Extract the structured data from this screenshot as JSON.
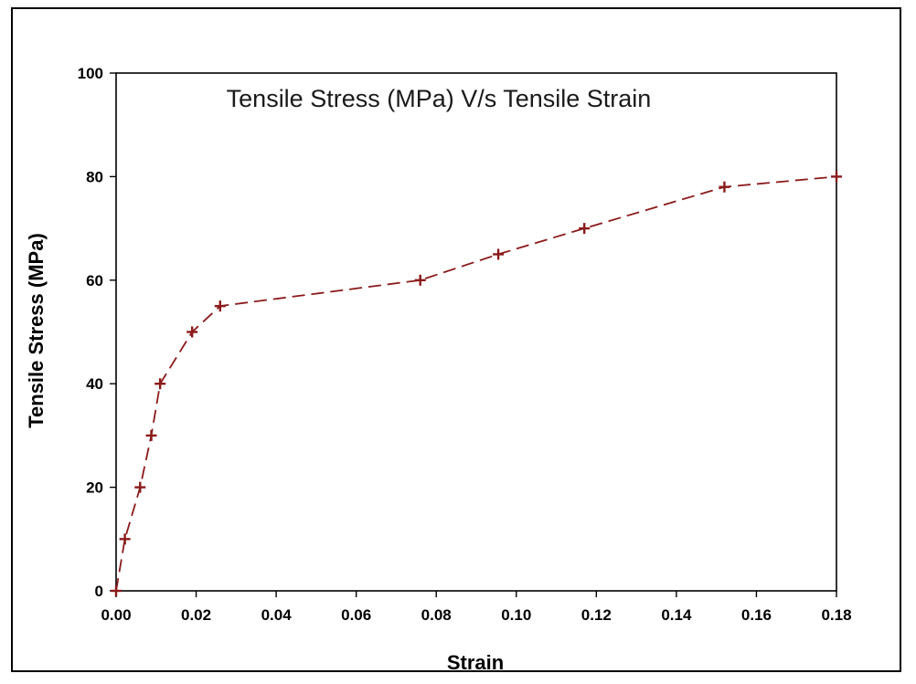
{
  "chart_data": {
    "type": "line",
    "title": "Tensile Stress (MPa) V/s Tensile Strain",
    "xlabel": "Strain",
    "ylabel": "Tensile Stress (MPa)",
    "xlim": [
      0,
      0.18
    ],
    "ylim": [
      0,
      100
    ],
    "xticks": [
      "0.00",
      "0.02",
      "0.04",
      "0.06",
      "0.08",
      "0.10",
      "0.12",
      "0.14",
      "0.16",
      "0.18"
    ],
    "yticks": [
      "0",
      "20",
      "40",
      "60",
      "80",
      "100"
    ],
    "grid": false,
    "series": [
      {
        "x": [
          0.0,
          0.0022,
          0.006,
          0.0088,
          0.011,
          0.019,
          0.026,
          0.076,
          0.0955,
          0.117,
          0.152,
          0.18
        ],
        "y": [
          0,
          10,
          20,
          30,
          40,
          50,
          55,
          60,
          65,
          70,
          78,
          80
        ],
        "color": "#8b1a1a",
        "line_style": "dashed",
        "marker": "plus"
      }
    ]
  }
}
